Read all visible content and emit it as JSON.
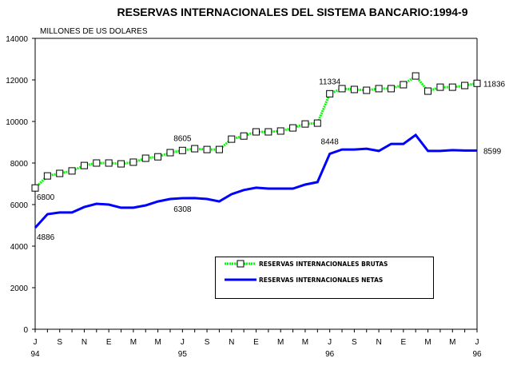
{
  "chart_data": {
    "type": "line",
    "title": "RESERVAS INTERNACIONALES DEL SISTEMA BANCARIO:1994-9",
    "ylabel": "MILLONES DE US DOLARES",
    "xlabel": "",
    "ylim": [
      0,
      14000
    ],
    "yticks": [
      0,
      2000,
      4000,
      6000,
      8000,
      10000,
      12000,
      14000
    ],
    "ytick_labels": [
      "0",
      "2000",
      "4000",
      "6000",
      "8000",
      "10000",
      "12000",
      "14000"
    ],
    "x_points": 37,
    "xtick_count": 37,
    "xtick_labels": [
      "J",
      "S",
      "N",
      "E",
      "M",
      "M",
      "J",
      "S",
      "N",
      "E",
      "M",
      "M",
      "J",
      "S",
      "N",
      "E",
      "M",
      "M",
      "J"
    ],
    "year_labels": [
      {
        "label": "94",
        "at_xtick_label": 0
      },
      {
        "label": "95",
        "at_xtick_label": 6
      },
      {
        "label": "96",
        "at_xtick_label": 12
      },
      {
        "label": "96",
        "at_xtick_label": 18
      }
    ],
    "grid": false,
    "legend_placement": "bottom-right",
    "series": [
      {
        "name": "RESERVAS INTERNACIONALES BRUTAS",
        "color": "#00ff00",
        "marker": "square",
        "values": [
          6800,
          7380,
          7500,
          7620,
          7880,
          8000,
          8000,
          7960,
          8040,
          8230,
          8300,
          8500,
          8605,
          8690,
          8650,
          8650,
          9150,
          9300,
          9500,
          9500,
          9540,
          9690,
          9880,
          9920,
          11334,
          11580,
          11540,
          11500,
          11580,
          11580,
          11770,
          12190,
          11460,
          11650,
          11650,
          11730,
          11836
        ]
      },
      {
        "name": "RESERVAS INTERNACIONALES NETAS",
        "color": "#0000ff",
        "marker": "none",
        "values": [
          4886,
          5540,
          5620,
          5620,
          5880,
          6040,
          6000,
          5850,
          5850,
          5960,
          6150,
          6270,
          6308,
          6310,
          6270,
          6150,
          6500,
          6700,
          6810,
          6770,
          6770,
          6770,
          6960,
          7080,
          8448,
          8650,
          8650,
          8690,
          8580,
          8920,
          8920,
          9350,
          8580,
          8580,
          8620,
          8600,
          8599
        ]
      }
    ],
    "annotations": [
      {
        "series": 0,
        "index": 0,
        "text": "6800"
      },
      {
        "series": 0,
        "index": 12,
        "text": "8605"
      },
      {
        "series": 0,
        "index": 24,
        "text": "11334"
      },
      {
        "series": 0,
        "index": 36,
        "text": "11836"
      },
      {
        "series": 1,
        "index": 0,
        "text": "4886"
      },
      {
        "series": 1,
        "index": 12,
        "text": "6308"
      },
      {
        "series": 1,
        "index": 24,
        "text": "8448"
      },
      {
        "series": 1,
        "index": 36,
        "text": "8599"
      }
    ]
  }
}
